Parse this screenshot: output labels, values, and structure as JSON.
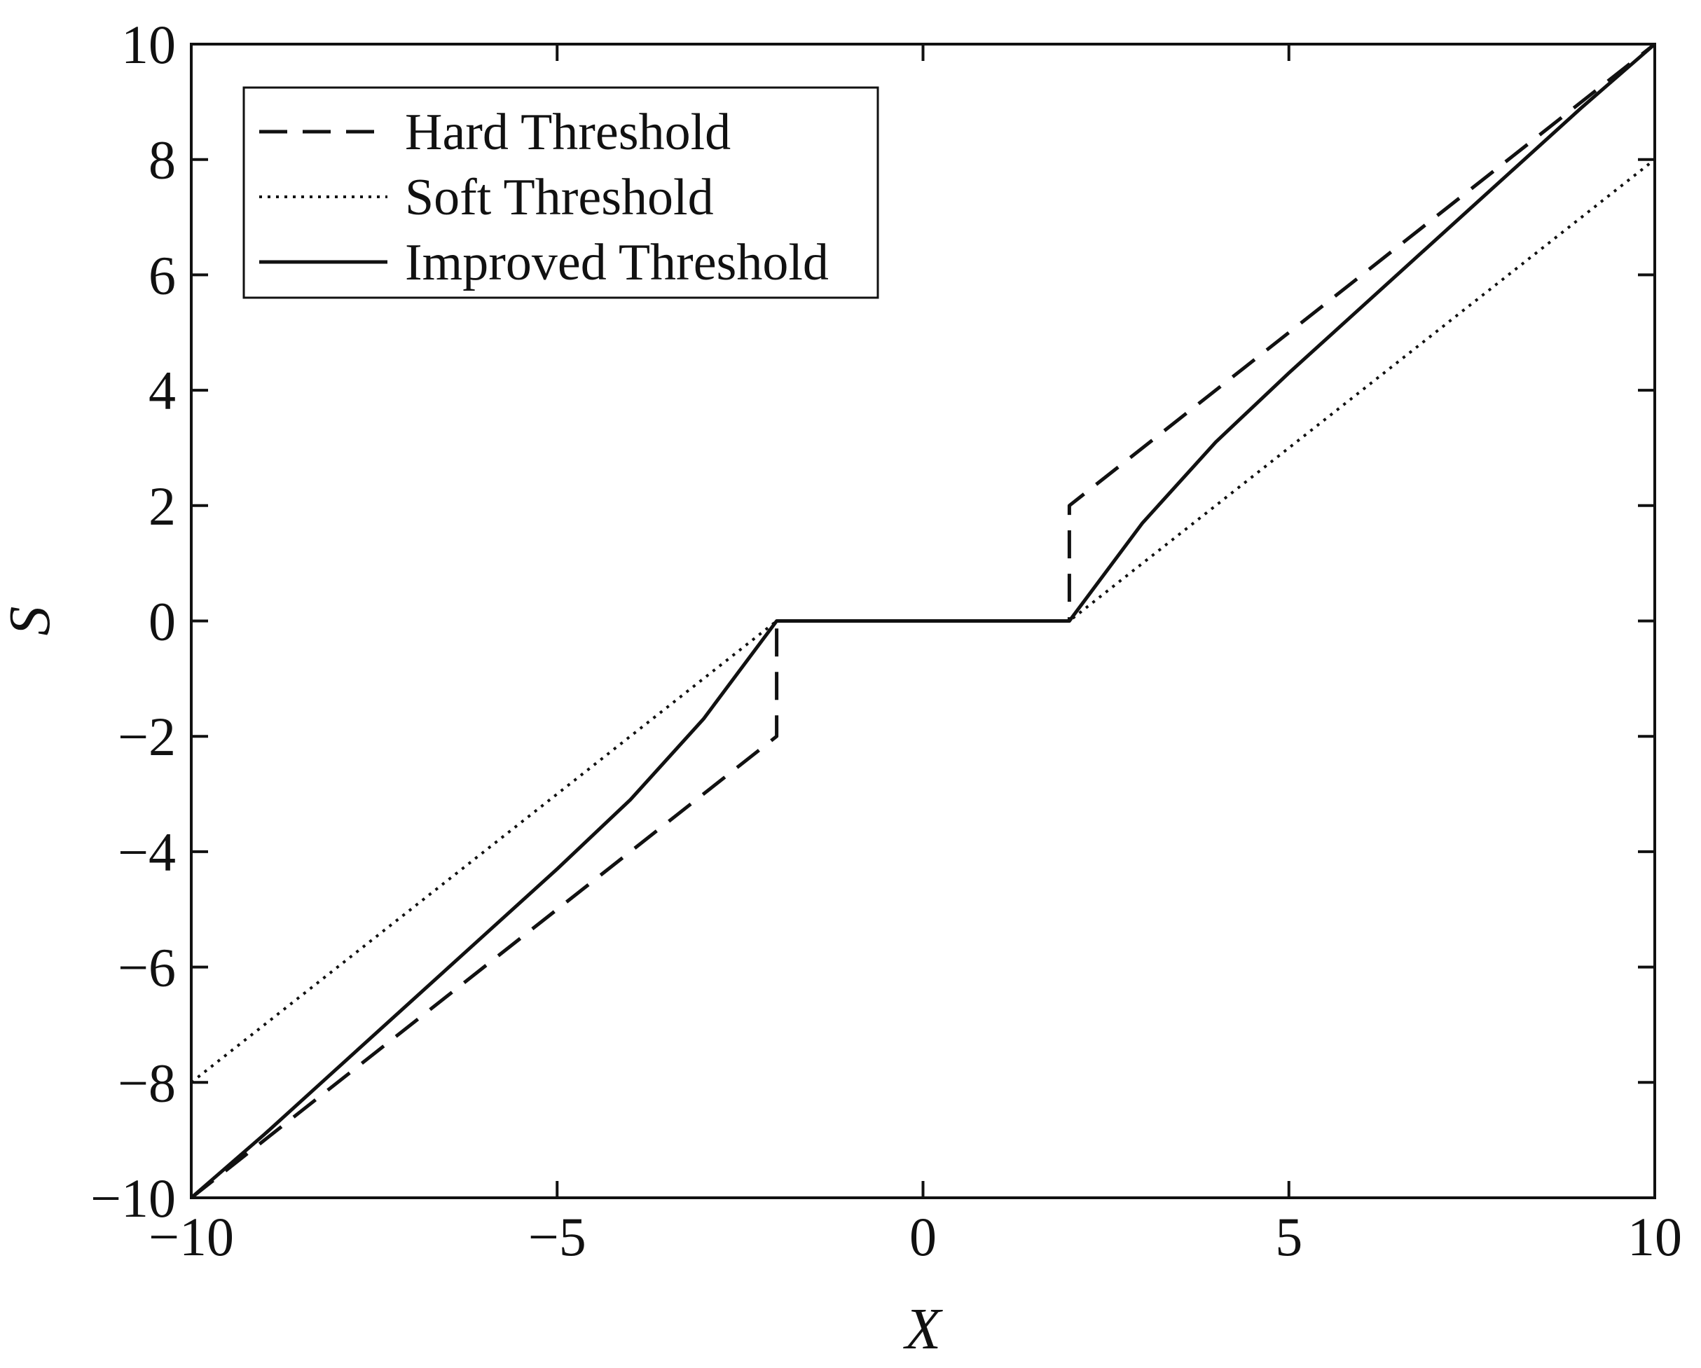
{
  "chart_data": {
    "type": "line",
    "xlabel": "X",
    "ylabel": "S",
    "xlim": [
      -10,
      10
    ],
    "ylim": [
      -10,
      10
    ],
    "x_ticks": [
      -10,
      -5,
      0,
      5,
      10
    ],
    "y_ticks": [
      -10,
      -8,
      -6,
      -4,
      -2,
      0,
      2,
      4,
      6,
      8,
      10
    ],
    "x_tick_labels": [
      "−10",
      "−5",
      "0",
      "5",
      "10"
    ],
    "y_tick_labels": [
      "−10",
      "−8",
      "−6",
      "−4",
      "−2",
      "0",
      "2",
      "4",
      "6",
      "8",
      "10"
    ],
    "grid": false,
    "legend_position": "top-left",
    "threshold": 2,
    "series": [
      {
        "name": "Hard Threshold",
        "style": "dashed",
        "color": "#111111",
        "x": [
          -10,
          -2,
          -2,
          2,
          2,
          10
        ],
        "y": [
          -10,
          -2,
          0,
          0,
          2,
          10
        ]
      },
      {
        "name": "Soft Threshold",
        "style": "dotted",
        "color": "#111111",
        "x": [
          -10,
          -2,
          2,
          10
        ],
        "y": [
          -8,
          0,
          0,
          8
        ]
      },
      {
        "name": "Improved Threshold",
        "style": "solid",
        "color": "#111111",
        "x": [
          -10,
          -9,
          -8,
          -7,
          -6,
          -5,
          -4,
          -3,
          -2,
          2,
          3,
          4,
          5,
          6,
          7,
          8,
          9,
          10
        ],
        "y": [
          -10,
          -8.9,
          -7.75,
          -6.6,
          -5.45,
          -4.3,
          -3.1,
          -1.7,
          0,
          0,
          1.7,
          3.1,
          4.3,
          5.45,
          6.6,
          7.75,
          8.9,
          10
        ]
      }
    ]
  }
}
